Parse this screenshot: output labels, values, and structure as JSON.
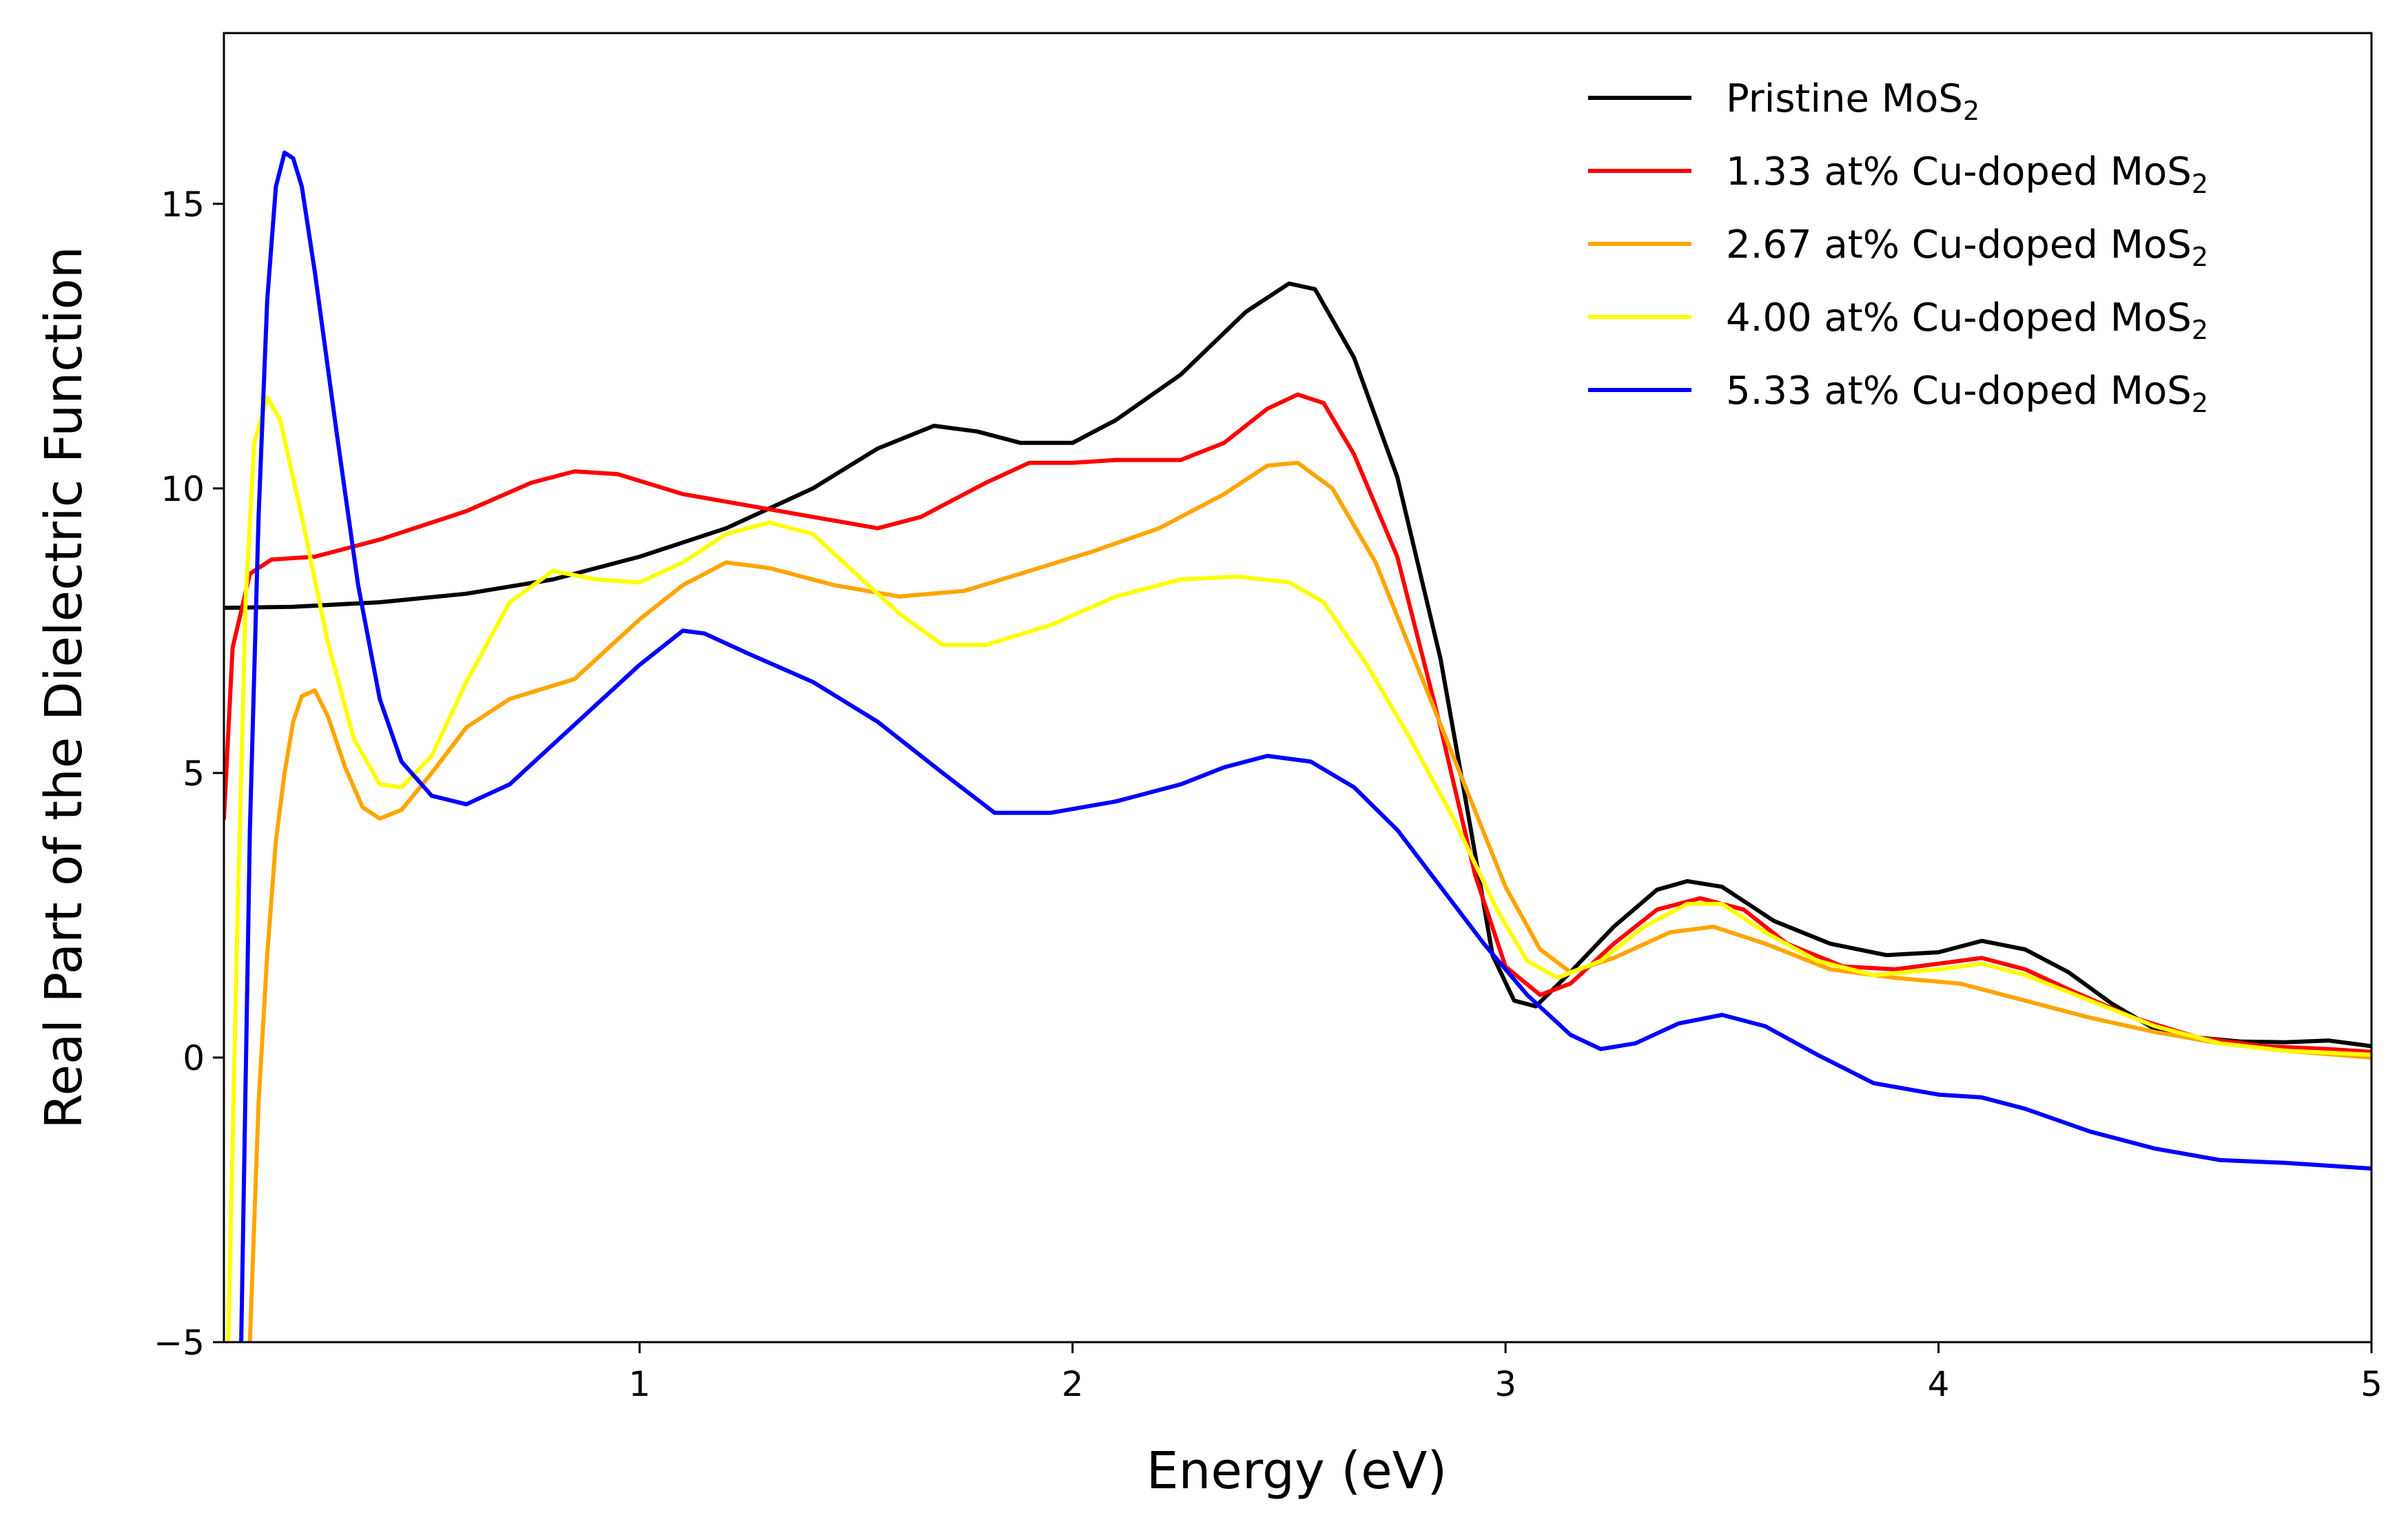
{
  "chart_data": {
    "type": "line",
    "title": "",
    "xlabel": "Energy (eV)",
    "ylabel": "Real Part of the Dielectric Function",
    "xlim": [
      0.04,
      5.0
    ],
    "ylim": [
      -5,
      18
    ],
    "xticks": [
      1,
      2,
      3,
      4,
      5
    ],
    "yticks": [
      -5,
      0,
      5,
      10,
      15
    ],
    "xtick_labels": [
      "1",
      "2",
      "3",
      "4",
      "5"
    ],
    "ytick_labels": [
      "−5",
      "0",
      "5",
      "10",
      "15"
    ],
    "grid": false,
    "legend_position": "top-right",
    "series": [
      {
        "name": "Pristine MoS",
        "subscript": "2",
        "color": "#000000",
        "points": [
          [
            0.04,
            7.9
          ],
          [
            0.2,
            7.92
          ],
          [
            0.4,
            8.0
          ],
          [
            0.6,
            8.15
          ],
          [
            0.8,
            8.4
          ],
          [
            1.0,
            8.8
          ],
          [
            1.2,
            9.3
          ],
          [
            1.4,
            10.0
          ],
          [
            1.55,
            10.7
          ],
          [
            1.68,
            11.1
          ],
          [
            1.78,
            11.0
          ],
          [
            1.88,
            10.8
          ],
          [
            2.0,
            10.8
          ],
          [
            2.1,
            11.2
          ],
          [
            2.25,
            12.0
          ],
          [
            2.4,
            13.1
          ],
          [
            2.5,
            13.6
          ],
          [
            2.56,
            13.5
          ],
          [
            2.65,
            12.3
          ],
          [
            2.75,
            10.2
          ],
          [
            2.85,
            7.0
          ],
          [
            2.92,
            4.0
          ],
          [
            2.97,
            1.8
          ],
          [
            3.02,
            1.0
          ],
          [
            3.07,
            0.9
          ],
          [
            3.15,
            1.5
          ],
          [
            3.25,
            2.3
          ],
          [
            3.35,
            2.95
          ],
          [
            3.42,
            3.1
          ],
          [
            3.5,
            3.0
          ],
          [
            3.62,
            2.4
          ],
          [
            3.75,
            2.0
          ],
          [
            3.88,
            1.8
          ],
          [
            4.0,
            1.85
          ],
          [
            4.1,
            2.05
          ],
          [
            4.2,
            1.9
          ],
          [
            4.3,
            1.5
          ],
          [
            4.4,
            0.95
          ],
          [
            4.5,
            0.5
          ],
          [
            4.6,
            0.35
          ],
          [
            4.7,
            0.28
          ],
          [
            4.8,
            0.27
          ],
          [
            4.9,
            0.3
          ],
          [
            5.0,
            0.2
          ]
        ]
      },
      {
        "name": "1.33 at% Cu-doped MoS",
        "subscript": "2",
        "color": "#ff0000",
        "points": [
          [
            0.04,
            4.2
          ],
          [
            0.06,
            7.2
          ],
          [
            0.1,
            8.5
          ],
          [
            0.15,
            8.75
          ],
          [
            0.25,
            8.8
          ],
          [
            0.4,
            9.1
          ],
          [
            0.6,
            9.6
          ],
          [
            0.75,
            10.1
          ],
          [
            0.85,
            10.3
          ],
          [
            0.95,
            10.25
          ],
          [
            1.1,
            9.9
          ],
          [
            1.25,
            9.7
          ],
          [
            1.4,
            9.5
          ],
          [
            1.55,
            9.3
          ],
          [
            1.65,
            9.5
          ],
          [
            1.8,
            10.1
          ],
          [
            1.9,
            10.45
          ],
          [
            2.0,
            10.45
          ],
          [
            2.1,
            10.5
          ],
          [
            2.25,
            10.5
          ],
          [
            2.35,
            10.8
          ],
          [
            2.45,
            11.4
          ],
          [
            2.52,
            11.65
          ],
          [
            2.58,
            11.5
          ],
          [
            2.65,
            10.6
          ],
          [
            2.75,
            8.8
          ],
          [
            2.85,
            5.8
          ],
          [
            2.93,
            3.2
          ],
          [
            3.0,
            1.6
          ],
          [
            3.08,
            1.1
          ],
          [
            3.15,
            1.3
          ],
          [
            3.25,
            2.0
          ],
          [
            3.35,
            2.6
          ],
          [
            3.45,
            2.8
          ],
          [
            3.55,
            2.6
          ],
          [
            3.65,
            2.0
          ],
          [
            3.78,
            1.6
          ],
          [
            3.9,
            1.55
          ],
          [
            4.0,
            1.65
          ],
          [
            4.1,
            1.75
          ],
          [
            4.2,
            1.55
          ],
          [
            4.3,
            1.2
          ],
          [
            4.45,
            0.7
          ],
          [
            4.6,
            0.35
          ],
          [
            4.75,
            0.2
          ],
          [
            4.9,
            0.15
          ],
          [
            5.0,
            0.1
          ]
        ]
      },
      {
        "name": "2.67 at% Cu-doped MoS",
        "subscript": "2",
        "color": "#ffa500",
        "points": [
          [
            0.1,
            -5.0
          ],
          [
            0.12,
            -0.8
          ],
          [
            0.14,
            1.8
          ],
          [
            0.16,
            3.8
          ],
          [
            0.18,
            5.0
          ],
          [
            0.2,
            5.9
          ],
          [
            0.22,
            6.35
          ],
          [
            0.25,
            6.45
          ],
          [
            0.28,
            6.0
          ],
          [
            0.32,
            5.1
          ],
          [
            0.36,
            4.4
          ],
          [
            0.4,
            4.2
          ],
          [
            0.45,
            4.35
          ],
          [
            0.52,
            5.0
          ],
          [
            0.6,
            5.8
          ],
          [
            0.7,
            6.3
          ],
          [
            0.85,
            6.65
          ],
          [
            1.0,
            7.7
          ],
          [
            1.1,
            8.3
          ],
          [
            1.2,
            8.7
          ],
          [
            1.3,
            8.6
          ],
          [
            1.45,
            8.3
          ],
          [
            1.6,
            8.1
          ],
          [
            1.75,
            8.2
          ],
          [
            1.9,
            8.55
          ],
          [
            2.05,
            8.9
          ],
          [
            2.2,
            9.3
          ],
          [
            2.35,
            9.9
          ],
          [
            2.45,
            10.4
          ],
          [
            2.52,
            10.45
          ],
          [
            2.6,
            10.0
          ],
          [
            2.7,
            8.7
          ],
          [
            2.8,
            6.8
          ],
          [
            2.9,
            4.9
          ],
          [
            3.0,
            3.0
          ],
          [
            3.08,
            1.9
          ],
          [
            3.15,
            1.5
          ],
          [
            3.25,
            1.75
          ],
          [
            3.38,
            2.2
          ],
          [
            3.48,
            2.3
          ],
          [
            3.6,
            2.0
          ],
          [
            3.75,
            1.55
          ],
          [
            3.9,
            1.4
          ],
          [
            4.05,
            1.3
          ],
          [
            4.2,
            1.0
          ],
          [
            4.35,
            0.7
          ],
          [
            4.5,
            0.45
          ],
          [
            4.65,
            0.25
          ],
          [
            4.8,
            0.12
          ],
          [
            5.0,
            0.0
          ]
        ]
      },
      {
        "name": "4.00 at% Cu-doped MoS",
        "subscript": "2",
        "color": "#ffff00",
        "points": [
          [
            0.05,
            -5.0
          ],
          [
            0.07,
            2.0
          ],
          [
            0.09,
            8.0
          ],
          [
            0.11,
            10.8
          ],
          [
            0.14,
            11.6
          ],
          [
            0.17,
            11.2
          ],
          [
            0.22,
            9.5
          ],
          [
            0.28,
            7.3
          ],
          [
            0.34,
            5.6
          ],
          [
            0.4,
            4.8
          ],
          [
            0.45,
            4.75
          ],
          [
            0.52,
            5.3
          ],
          [
            0.6,
            6.6
          ],
          [
            0.7,
            8.0
          ],
          [
            0.8,
            8.55
          ],
          [
            0.9,
            8.4
          ],
          [
            1.0,
            8.35
          ],
          [
            1.1,
            8.7
          ],
          [
            1.2,
            9.2
          ],
          [
            1.3,
            9.4
          ],
          [
            1.4,
            9.2
          ],
          [
            1.5,
            8.5
          ],
          [
            1.6,
            7.8
          ],
          [
            1.7,
            7.25
          ],
          [
            1.8,
            7.25
          ],
          [
            1.95,
            7.6
          ],
          [
            2.1,
            8.1
          ],
          [
            2.25,
            8.4
          ],
          [
            2.38,
            8.45
          ],
          [
            2.5,
            8.35
          ],
          [
            2.58,
            8.0
          ],
          [
            2.68,
            6.9
          ],
          [
            2.78,
            5.6
          ],
          [
            2.88,
            4.2
          ],
          [
            2.98,
            2.6
          ],
          [
            3.05,
            1.7
          ],
          [
            3.12,
            1.4
          ],
          [
            3.22,
            1.7
          ],
          [
            3.32,
            2.3
          ],
          [
            3.42,
            2.7
          ],
          [
            3.5,
            2.7
          ],
          [
            3.6,
            2.2
          ],
          [
            3.72,
            1.7
          ],
          [
            3.85,
            1.45
          ],
          [
            4.0,
            1.55
          ],
          [
            4.1,
            1.65
          ],
          [
            4.2,
            1.45
          ],
          [
            4.35,
            1.0
          ],
          [
            4.5,
            0.55
          ],
          [
            4.65,
            0.25
          ],
          [
            4.8,
            0.12
          ],
          [
            5.0,
            0.05
          ]
        ]
      },
      {
        "name": "5.33 at% Cu-doped MoS",
        "subscript": "2",
        "color": "#0000ff",
        "points": [
          [
            0.08,
            -5.0
          ],
          [
            0.1,
            4.0
          ],
          [
            0.12,
            9.5
          ],
          [
            0.14,
            13.3
          ],
          [
            0.16,
            15.3
          ],
          [
            0.18,
            15.9
          ],
          [
            0.2,
            15.8
          ],
          [
            0.22,
            15.3
          ],
          [
            0.25,
            13.8
          ],
          [
            0.3,
            11.0
          ],
          [
            0.35,
            8.3
          ],
          [
            0.4,
            6.3
          ],
          [
            0.45,
            5.2
          ],
          [
            0.52,
            4.6
          ],
          [
            0.6,
            4.45
          ],
          [
            0.7,
            4.8
          ],
          [
            0.8,
            5.5
          ],
          [
            0.9,
            6.2
          ],
          [
            1.0,
            6.9
          ],
          [
            1.1,
            7.5
          ],
          [
            1.15,
            7.45
          ],
          [
            1.25,
            7.1
          ],
          [
            1.4,
            6.6
          ],
          [
            1.55,
            5.9
          ],
          [
            1.7,
            5.0
          ],
          [
            1.82,
            4.3
          ],
          [
            1.95,
            4.3
          ],
          [
            2.1,
            4.5
          ],
          [
            2.25,
            4.8
          ],
          [
            2.35,
            5.1
          ],
          [
            2.45,
            5.3
          ],
          [
            2.55,
            5.2
          ],
          [
            2.65,
            4.75
          ],
          [
            2.75,
            4.0
          ],
          [
            2.85,
            3.0
          ],
          [
            2.95,
            2.0
          ],
          [
            3.05,
            1.1
          ],
          [
            3.15,
            0.4
          ],
          [
            3.22,
            0.15
          ],
          [
            3.3,
            0.25
          ],
          [
            3.4,
            0.6
          ],
          [
            3.5,
            0.75
          ],
          [
            3.6,
            0.55
          ],
          [
            3.72,
            0.05
          ],
          [
            3.85,
            -0.45
          ],
          [
            4.0,
            -0.65
          ],
          [
            4.1,
            -0.7
          ],
          [
            4.2,
            -0.9
          ],
          [
            4.35,
            -1.3
          ],
          [
            4.5,
            -1.6
          ],
          [
            4.65,
            -1.8
          ],
          [
            4.8,
            -1.85
          ],
          [
            4.9,
            -1.9
          ],
          [
            5.0,
            -1.95
          ]
        ]
      }
    ]
  }
}
